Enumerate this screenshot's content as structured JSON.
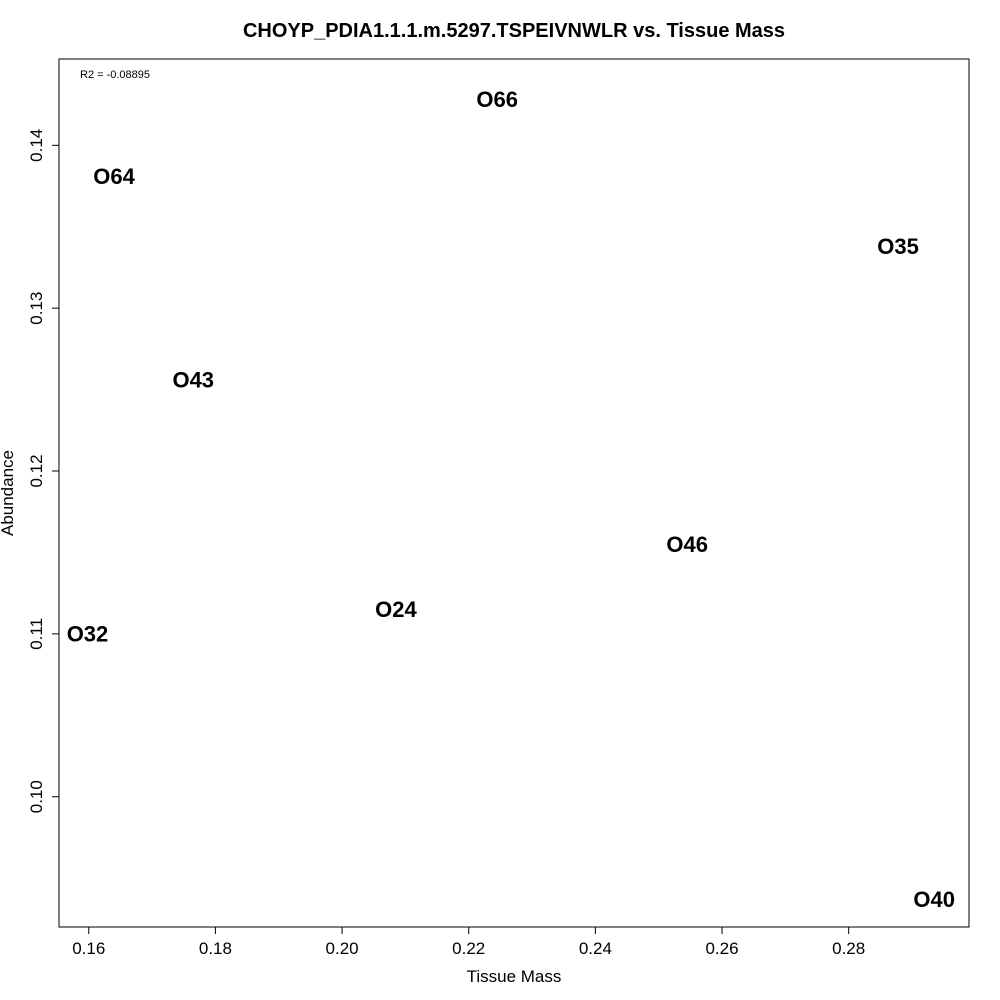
{
  "chart_data": {
    "type": "scatter",
    "title": "CHOYP_PDIA1.1.1.m.5297.TSPEIVNWLR vs. Tissue Mass",
    "xlabel": "Tissue Mass",
    "ylabel": "Abundance",
    "annotation": "R2 = -0.08895",
    "xlim": [
      0.1553,
      0.299
    ],
    "ylim": [
      0.092,
      0.1453
    ],
    "x_ticks": [
      0.16,
      0.18,
      0.2,
      0.22,
      0.24,
      0.26,
      0.28
    ],
    "x_tick_labels": [
      "0.16",
      "0.18",
      "0.20",
      "0.22",
      "0.24",
      "0.26",
      "0.28"
    ],
    "y_ticks": [
      0.1,
      0.11,
      0.12,
      0.13,
      0.14
    ],
    "y_tick_labels": [
      "0.10",
      "0.11",
      "0.12",
      "0.13",
      "0.14"
    ],
    "grid": false,
    "points": [
      {
        "label": "O66",
        "x": 0.2245,
        "y": 0.1428
      },
      {
        "label": "O64",
        "x": 0.164,
        "y": 0.1381
      },
      {
        "label": "O35",
        "x": 0.2878,
        "y": 0.1338
      },
      {
        "label": "O43",
        "x": 0.1765,
        "y": 0.1256
      },
      {
        "label": "O46",
        "x": 0.2545,
        "y": 0.1155
      },
      {
        "label": "O24",
        "x": 0.2085,
        "y": 0.1115
      },
      {
        "label": "O32",
        "x": 0.1598,
        "y": 0.11
      },
      {
        "label": "O40",
        "x": 0.2935,
        "y": 0.0937
      }
    ]
  }
}
